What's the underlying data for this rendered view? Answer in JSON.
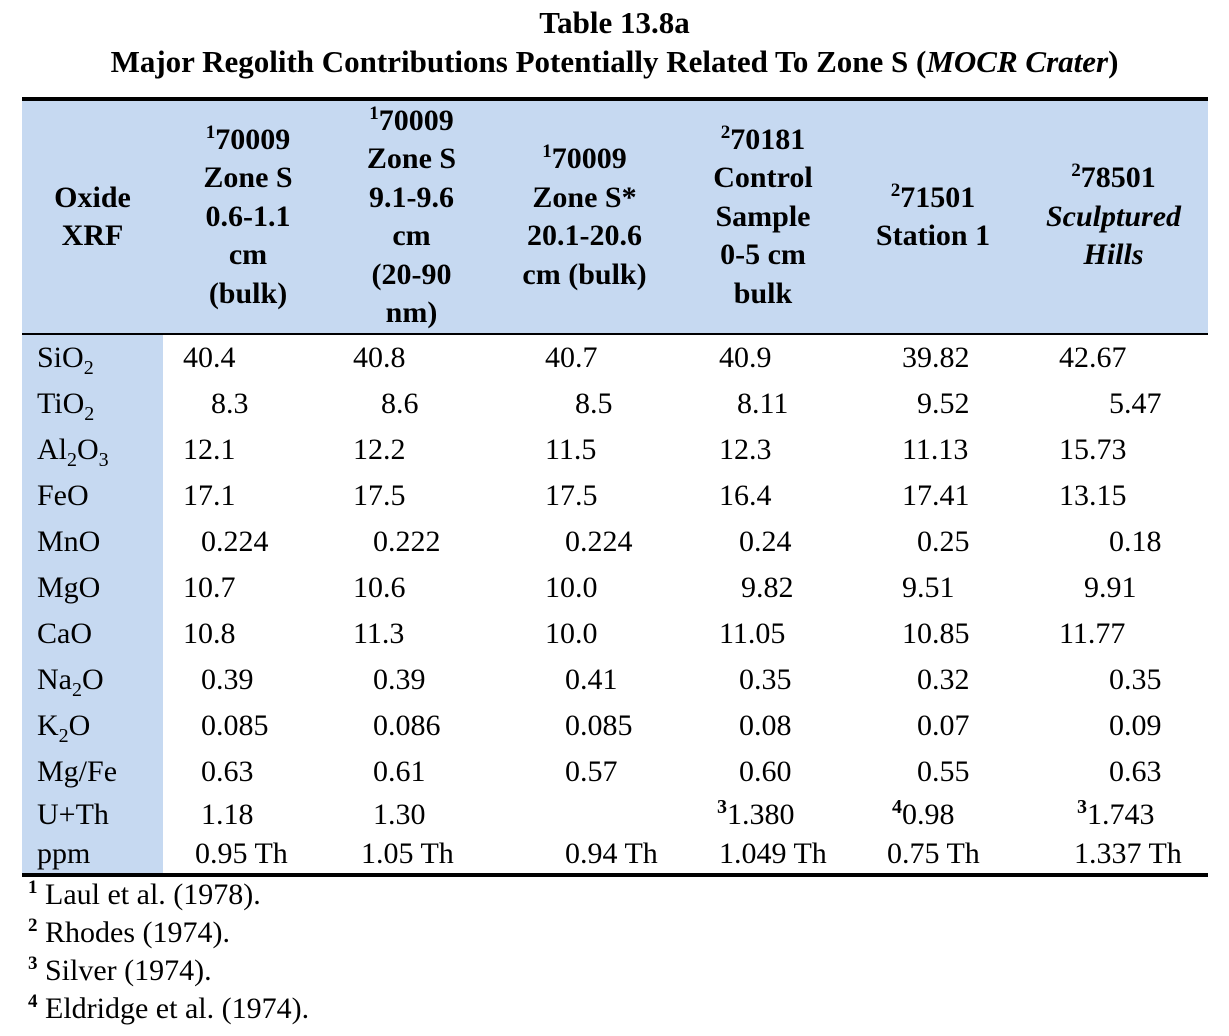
{
  "title": "Table 13.8a",
  "subtitle_main": "Major Regolith Contributions Potentially Related To Zone S (",
  "subtitle_italic": "MOCR Crater",
  "subtitle_end": ")",
  "headers": [
    {
      "lines": [
        "Oxide",
        "XRF"
      ]
    },
    {
      "sup": "1",
      "lines": [
        "70009",
        "Zone S",
        "0.6-1.1",
        "cm",
        "(bulk)"
      ]
    },
    {
      "sup": "1",
      "lines": [
        "70009",
        "Zone S",
        "9.1-9.6",
        "cm",
        "(20-90",
        "nm)"
      ]
    },
    {
      "sup": "1",
      "lines": [
        "70009",
        "Zone S*",
        "20.1-20.6",
        "cm (bulk)"
      ]
    },
    {
      "sup": "2",
      "lines": [
        "70181",
        "Control",
        "Sample",
        "0-5 cm",
        "bulk"
      ]
    },
    {
      "sup": "2",
      "lines": [
        "71501",
        "Station 1"
      ]
    },
    {
      "sup": "2",
      "lines": [
        "78501",
        "Sculptured",
        "Hills"
      ],
      "italic_from": 1
    }
  ],
  "rows": [
    {
      "oxide": [
        [
          "Si",
          ""
        ],
        [
          "O",
          "2"
        ]
      ],
      "values": [
        "40.4",
        "40.8",
        "40.7",
        "40.9",
        "39.82",
        "42.67"
      ]
    },
    {
      "oxide": [
        [
          "Ti",
          ""
        ],
        [
          "O",
          "2"
        ]
      ],
      "values": [
        "8.3",
        "8.6",
        "8.5",
        "8.11",
        "9.52",
        "5.47"
      ]
    },
    {
      "oxide": [
        [
          "Al",
          "2"
        ],
        [
          "O",
          "3"
        ]
      ],
      "values": [
        "12.1",
        "12.2",
        "11.5",
        "12.3",
        "11.13",
        "15.73"
      ]
    },
    {
      "oxide": [
        [
          "FeO",
          ""
        ]
      ],
      "values": [
        "17.1",
        "17.5",
        "17.5",
        "16.4",
        "17.41",
        "13.15"
      ]
    },
    {
      "oxide": [
        [
          "MnO",
          ""
        ]
      ],
      "values": [
        "0.224",
        "0.222",
        "0.224",
        "0.24",
        "0.25",
        "0.18"
      ]
    },
    {
      "oxide": [
        [
          "MgO",
          ""
        ]
      ],
      "values": [
        "10.7",
        "10.6",
        "10.0",
        "9.82",
        "9.51",
        "9.91"
      ]
    },
    {
      "oxide": [
        [
          "CaO",
          ""
        ]
      ],
      "values": [
        "10.8",
        "11.3",
        "10.0",
        "11.05",
        "10.85",
        "11.77"
      ]
    },
    {
      "oxide": [
        [
          "Na",
          "2"
        ],
        [
          "O",
          ""
        ]
      ],
      "values": [
        "0.39",
        "0.39",
        "0.41",
        "0.35",
        "0.32",
        "0.35"
      ]
    },
    {
      "oxide": [
        [
          "K",
          "2"
        ],
        [
          "O",
          ""
        ]
      ],
      "values": [
        "0.085",
        "0.086",
        "0.085",
        "0.08",
        "0.07",
        "0.09"
      ]
    },
    {
      "oxide": [
        [
          "Mg/Fe",
          ""
        ]
      ],
      "values": [
        "0.63",
        "0.61",
        "0.57",
        "0.60",
        "0.55",
        "0.63"
      ]
    }
  ],
  "uth_row": {
    "label": "U+Th",
    "values": [
      {
        "sup": "",
        "v": "1.18"
      },
      {
        "sup": "",
        "v": "1.30"
      },
      {
        "sup": "",
        "v": ""
      },
      {
        "sup": "3",
        "v": "1.380"
      },
      {
        "sup": "4",
        "v": "0.98"
      },
      {
        "sup": "3",
        "v": "1.743"
      }
    ]
  },
  "ppm_row": {
    "label": "ppm",
    "values": [
      "0.95 Th",
      "1.05 Th",
      "0.94 Th",
      "1.049 Th",
      "0.75 Th",
      "1.337 Th"
    ]
  },
  "footnotes": [
    {
      "sup": "1",
      "text": " Laul et al. (1978)."
    },
    {
      "sup": "2",
      "text": " Rhodes (1974)."
    },
    {
      "sup": "3",
      "text": " Silver (1974)."
    },
    {
      "sup": "4",
      "text": " Eldridge et al. (1974)."
    }
  ]
}
